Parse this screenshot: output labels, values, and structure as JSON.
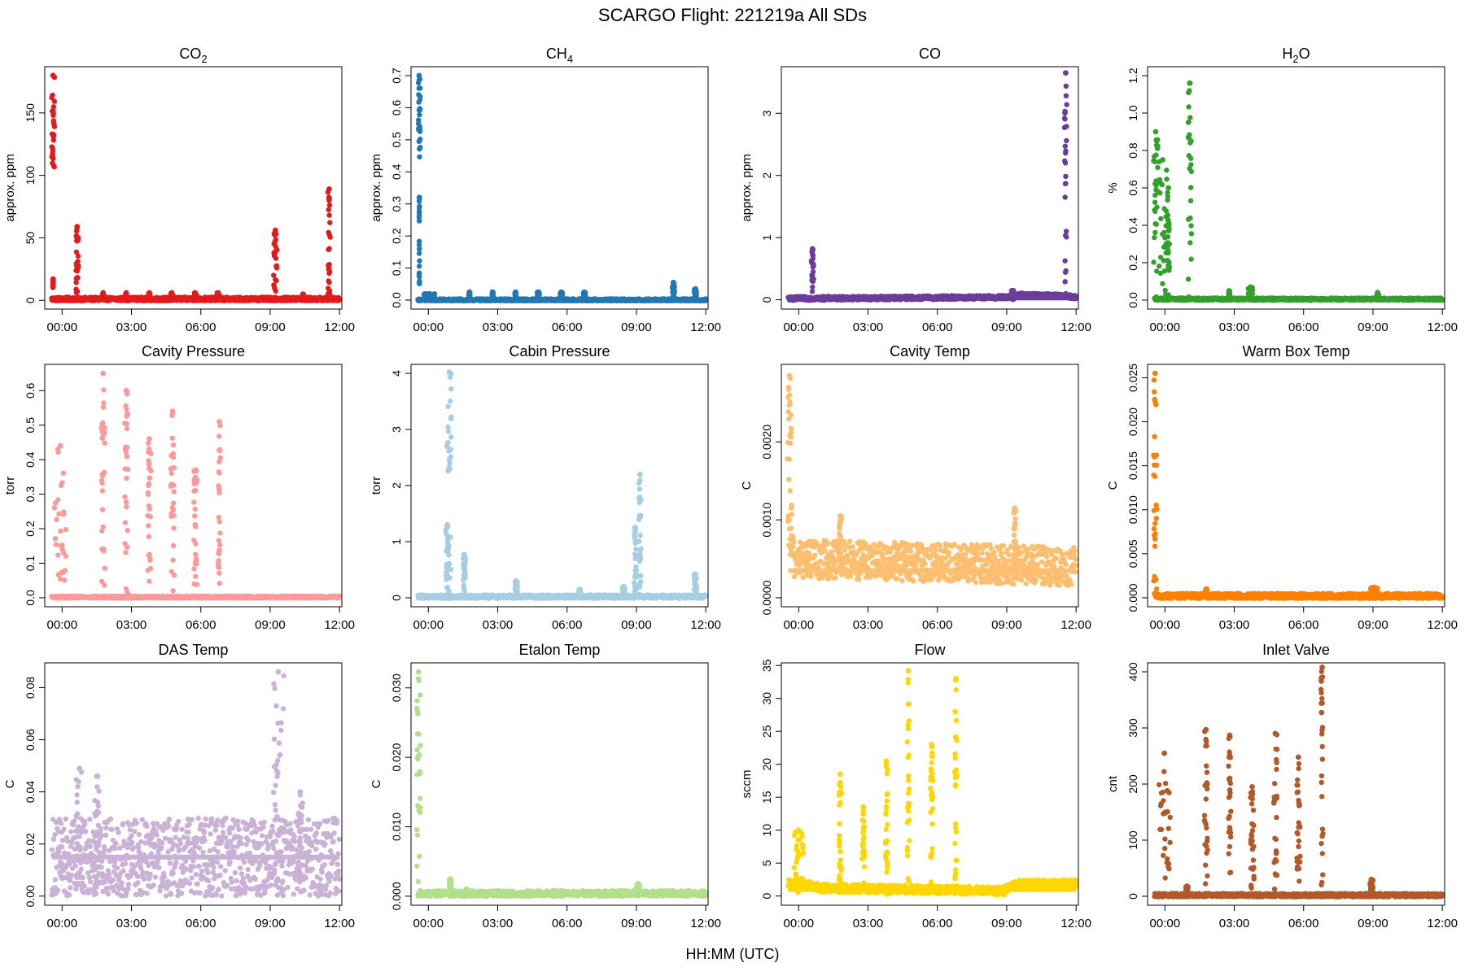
{
  "title": "SCARGO Flight: 221219a  All SDs",
  "x_axis_label": "HH:MM (UTC)",
  "chart_data": [
    {
      "type": "scatter",
      "title": "CO2",
      "title_base": "CO",
      "title_sub": "2",
      "ylabel": "approx. ppm",
      "color": "#E31A1C",
      "xlim": [
        -0.75,
        12.1
      ],
      "ylim": [
        -7,
        187
      ],
      "yticks": [
        0,
        50,
        100,
        150
      ],
      "ytick_labels": [
        "0",
        "50",
        "100",
        "150"
      ],
      "baseline": 1,
      "noise": 1.5,
      "profile": [],
      "spikes": [
        [
          -0.45,
          -0.33,
          105,
          180
        ],
        [
          -0.4,
          -0.38,
          10,
          17
        ],
        [
          0.6,
          0.7,
          2,
          59
        ],
        [
          1.75,
          1.8,
          0,
          6
        ],
        [
          2.75,
          2.8,
          0,
          6
        ],
        [
          3.75,
          3.8,
          0,
          6
        ],
        [
          4.7,
          4.8,
          0,
          6
        ],
        [
          5.7,
          5.8,
          0,
          6
        ],
        [
          6.7,
          6.8,
          0,
          6
        ],
        [
          9.15,
          9.3,
          0,
          56
        ],
        [
          10.4,
          10.45,
          0,
          5
        ],
        [
          11.5,
          11.6,
          0,
          89
        ]
      ]
    },
    {
      "type": "scatter",
      "title": "CH4",
      "title_base": "CH",
      "title_sub": "4",
      "ylabel": "approx. ppm",
      "color": "#1F78B4",
      "xlim": [
        -0.75,
        12.1
      ],
      "ylim": [
        -0.028,
        0.728
      ],
      "yticks": [
        0,
        0.1,
        0.2,
        0.3,
        0.4,
        0.5,
        0.6,
        0.7
      ],
      "ytick_labels": [
        "0.0",
        "0.1",
        "0.2",
        "0.3",
        "0.4",
        "0.5",
        "0.6",
        "0.7"
      ],
      "baseline": 0.0,
      "noise": 0.004,
      "profile": [],
      "spikes": [
        [
          -0.45,
          -0.35,
          0.42,
          0.7
        ],
        [
          -0.4,
          -0.38,
          0.05,
          0.32
        ],
        [
          -0.2,
          0.3,
          0,
          0.02
        ],
        [
          1.75,
          1.8,
          0,
          0.025
        ],
        [
          2.75,
          2.8,
          0,
          0.025
        ],
        [
          3.75,
          3.8,
          0,
          0.025
        ],
        [
          4.7,
          4.8,
          0,
          0.025
        ],
        [
          5.7,
          5.8,
          0,
          0.025
        ],
        [
          6.7,
          6.8,
          0,
          0.025
        ],
        [
          10.55,
          10.65,
          0,
          0.055
        ],
        [
          11.5,
          11.6,
          0,
          0.035
        ]
      ]
    },
    {
      "type": "scatter",
      "title": "CO",
      "title_base": "CO",
      "title_sub": "",
      "ylabel": "approx. ppm",
      "color": "#6A3D9A",
      "xlim": [
        -0.75,
        12.1
      ],
      "ylim": [
        -0.15,
        3.75
      ],
      "yticks": [
        0,
        1,
        2,
        3
      ],
      "ytick_labels": [
        "0",
        "1",
        "2",
        "3"
      ],
      "baseline": 0.03,
      "noise": 0.03,
      "profile": [
        [
          -0.4,
          0.02
        ],
        [
          9.1,
          0.04
        ],
        [
          9.3,
          0.08
        ],
        [
          11.5,
          0.06
        ],
        [
          12,
          0.04
        ]
      ],
      "spikes": [
        [
          0.55,
          0.65,
          0.05,
          0.82
        ],
        [
          9.2,
          9.3,
          0,
          0.15
        ],
        [
          11.5,
          11.6,
          0.05,
          3.65
        ]
      ]
    },
    {
      "type": "scatter",
      "title": "H2O",
      "title_base": "H",
      "title_sub": "2",
      "title_tail": "O",
      "ylabel": "%",
      "color": "#33A02C",
      "xlim": [
        -0.75,
        12.1
      ],
      "ylim": [
        -0.048,
        1.248
      ],
      "yticks": [
        0,
        0.2,
        0.4,
        0.6,
        0.8,
        1.0,
        1.2
      ],
      "ytick_labels": [
        "0.0",
        "0.2",
        "0.4",
        "0.6",
        "0.8",
        "1.0",
        "1.2"
      ],
      "baseline": 0.005,
      "noise": 0.006,
      "profile": [],
      "spikes": [
        [
          -0.5,
          -0.3,
          0,
          0.9
        ],
        [
          -0.3,
          0.1,
          0,
          0.75
        ],
        [
          0.1,
          0.2,
          0,
          0.6
        ],
        [
          1.0,
          1.15,
          0,
          1.16
        ],
        [
          2.75,
          2.8,
          0,
          0.05
        ],
        [
          3.6,
          3.8,
          0,
          0.07
        ],
        [
          9.15,
          9.25,
          0,
          0.04
        ]
      ]
    },
    {
      "type": "scatter",
      "title": "Cavity Pressure",
      "ylabel": "torr",
      "color": "#FB9A99",
      "xlim": [
        -0.75,
        12.1
      ],
      "ylim": [
        -0.026,
        0.676
      ],
      "yticks": [
        0,
        0.1,
        0.2,
        0.3,
        0.4,
        0.5,
        0.6
      ],
      "ytick_labels": [
        "0.0",
        "0.1",
        "0.2",
        "0.3",
        "0.4",
        "0.5",
        "0.6"
      ],
      "baseline": 0.002,
      "noise": 0.003,
      "profile": [],
      "spikes": [
        [
          -0.35,
          0.2,
          0,
          0.44
        ],
        [
          1.7,
          1.85,
          0,
          0.65
        ],
        [
          2.7,
          2.85,
          0,
          0.6
        ],
        [
          3.7,
          3.85,
          0,
          0.46
        ],
        [
          4.7,
          4.85,
          0,
          0.54
        ],
        [
          5.7,
          5.85,
          0,
          0.37
        ],
        [
          6.75,
          6.85,
          0,
          0.51
        ]
      ]
    },
    {
      "type": "scatter",
      "title": "Cabin Pressure",
      "ylabel": "torr",
      "color": "#A6CEE3",
      "xlim": [
        -0.75,
        12.1
      ],
      "ylim": [
        -0.16,
        4.16
      ],
      "yticks": [
        0,
        1,
        2,
        3,
        4
      ],
      "ytick_labels": [
        "0",
        "1",
        "2",
        "3",
        "4"
      ],
      "baseline": 0.02,
      "noise": 0.03,
      "profile": [],
      "spikes": [
        [
          0.8,
          1.0,
          0,
          4.02
        ],
        [
          0.75,
          0.9,
          0,
          1.3
        ],
        [
          1.5,
          1.6,
          0,
          0.77
        ],
        [
          3.75,
          3.85,
          0,
          0.3
        ],
        [
          6.5,
          6.6,
          0,
          0.15
        ],
        [
          8.4,
          8.5,
          0,
          0.2
        ],
        [
          8.9,
          9.0,
          0,
          1.25
        ],
        [
          9.1,
          9.2,
          0,
          2.2
        ],
        [
          11.5,
          11.6,
          0,
          0.42
        ]
      ]
    },
    {
      "type": "scatter",
      "title": "Cavity Temp",
      "ylabel": "C",
      "color": "#FDBF6F",
      "xlim": [
        -0.75,
        12.1
      ],
      "ylim": [
        -0.000115,
        0.002995
      ],
      "yticks": [
        0,
        0.001,
        0.002
      ],
      "ytick_labels": [
        "0.0000",
        "0.0010",
        "0.0020"
      ],
      "baseline": 0.00035,
      "noise": 0.00025,
      "profile": [
        [
          -0.4,
          0.0008
        ],
        [
          -0.2,
          0.0005
        ],
        [
          12,
          0.0004
        ]
      ],
      "spikes": [
        [
          -0.5,
          -0.3,
          0.0008,
          0.00285
        ],
        [
          1.75,
          1.85,
          0.0004,
          0.00105
        ],
        [
          9.3,
          9.4,
          0.0004,
          0.00115
        ]
      ]
    },
    {
      "type": "scatter",
      "title": "Warm Box Temp",
      "ylabel": "C",
      "color": "#FF7F00",
      "xlim": [
        -0.75,
        12.1
      ],
      "ylim": [
        -0.00102,
        0.02652
      ],
      "yticks": [
        0,
        0.005,
        0.01,
        0.015,
        0.02,
        0.025
      ],
      "ytick_labels": [
        "0.000",
        "0.005",
        "0.010",
        "0.015",
        "0.020",
        "0.025"
      ],
      "baseline": 0.0002,
      "noise": 0.0003,
      "profile": [],
      "spikes": [
        [
          -0.5,
          -0.35,
          0,
          0.0255
        ],
        [
          1.75,
          1.85,
          0,
          0.001
        ],
        [
          8.9,
          9.2,
          0,
          0.0012
        ]
      ]
    },
    {
      "type": "scatter",
      "title": "DAS Temp",
      "ylabel": "C",
      "color": "#CAB2D6",
      "xlim": [
        -0.75,
        12.1
      ],
      "ylim": [
        -0.0035,
        0.0895
      ],
      "yticks": [
        0,
        0.02,
        0.04,
        0.06,
        0.08
      ],
      "ytick_labels": [
        "0.00",
        "0.02",
        "0.04",
        "0.06",
        "0.08"
      ],
      "baseline": 0.015,
      "noise": 0.015,
      "profile": [],
      "spikes": [
        [
          0.6,
          0.9,
          0,
          0.049
        ],
        [
          1.4,
          1.6,
          0,
          0.046
        ],
        [
          9.1,
          9.6,
          0,
          0.086
        ],
        [
          10.2,
          10.4,
          0,
          0.04
        ]
      ]
    },
    {
      "type": "scatter",
      "title": "Etalon Temp",
      "ylabel": "C",
      "color": "#B2DF8A",
      "xlim": [
        -0.75,
        12.1
      ],
      "ylim": [
        -0.0013,
        0.0336
      ],
      "yticks": [
        0,
        0.01,
        0.02,
        0.03
      ],
      "ytick_labels": [
        "0.000",
        "0.010",
        "0.020",
        "0.030"
      ],
      "baseline": 0.0004,
      "noise": 0.0004,
      "profile": [],
      "spikes": [
        [
          -0.5,
          -0.35,
          0,
          0.0323
        ],
        [
          0.9,
          1.0,
          0,
          0.0025
        ],
        [
          1.6,
          1.7,
          0,
          0.001
        ],
        [
          9.0,
          9.15,
          0,
          0.0018
        ]
      ]
    },
    {
      "type": "scatter",
      "title": "Flow",
      "ylabel": "sccm",
      "color": "#FFD700",
      "xlim": [
        -0.75,
        12.1
      ],
      "ylim": [
        -1.4,
        35.4
      ],
      "yticks": [
        0,
        5,
        10,
        15,
        20,
        25,
        30,
        35
      ],
      "ytick_labels": [
        "0",
        "5",
        "10",
        "15",
        "20",
        "25",
        "30",
        "35"
      ],
      "baseline": 1.0,
      "noise": 0.6,
      "profile": [
        [
          -0.5,
          2.0
        ],
        [
          0.3,
          1.8
        ],
        [
          1.0,
          1.2
        ],
        [
          8.9,
          0.8
        ],
        [
          9.2,
          1.8
        ],
        [
          12,
          1.9
        ]
      ],
      "spikes": [
        [
          -0.2,
          0.2,
          0,
          10
        ],
        [
          1.75,
          1.85,
          0,
          18.5
        ],
        [
          2.75,
          2.85,
          0,
          13.5
        ],
        [
          3.75,
          3.85,
          0,
          20.5
        ],
        [
          4.7,
          4.8,
          0,
          34.2
        ],
        [
          5.7,
          5.8,
          0,
          23
        ],
        [
          6.75,
          6.85,
          0,
          33
        ]
      ]
    },
    {
      "type": "scatter",
      "title": "Inlet Valve",
      "ylabel": "cnt",
      "color": "#B15928",
      "xlim": [
        -0.75,
        12.1
      ],
      "ylim": [
        -16,
        416
      ],
      "yticks": [
        0,
        100,
        200,
        300,
        400
      ],
      "ytick_labels": [
        "0",
        "100",
        "200",
        "300",
        "400"
      ],
      "baseline": 2,
      "noise": 3,
      "profile": [],
      "spikes": [
        [
          -0.3,
          0.25,
          0,
          255
        ],
        [
          0.9,
          1.0,
          0,
          18
        ],
        [
          1.7,
          1.85,
          0,
          297
        ],
        [
          2.75,
          2.85,
          0,
          287
        ],
        [
          3.7,
          3.85,
          0,
          195
        ],
        [
          4.7,
          4.85,
          0,
          290
        ],
        [
          5.7,
          5.85,
          0,
          248
        ],
        [
          6.75,
          6.85,
          0,
          408
        ],
        [
          8.85,
          9.0,
          0,
          30
        ]
      ]
    }
  ],
  "x_ticks": [
    0,
    3,
    6,
    9,
    12
  ],
  "x_tick_labels": [
    "00:00",
    "03:00",
    "06:00",
    "09:00",
    "12:00"
  ]
}
